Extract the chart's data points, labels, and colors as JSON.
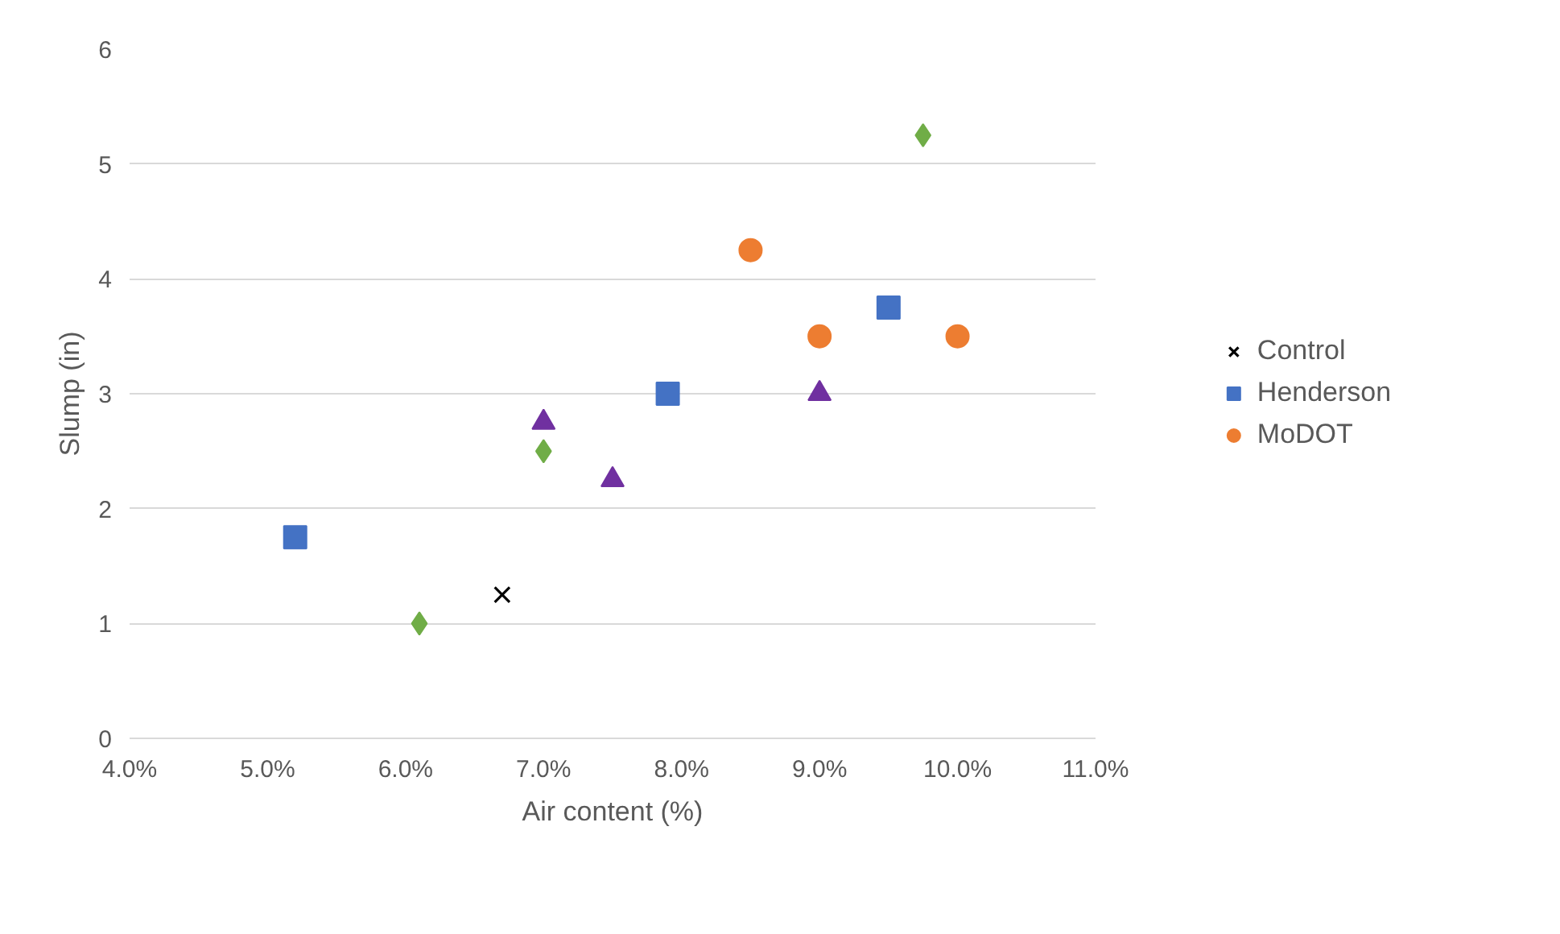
{
  "chart_data": {
    "type": "scatter",
    "xlabel": "Air content (%)",
    "ylabel": "Slump (in)",
    "xlim": [
      4,
      11
    ],
    "ylim": [
      0,
      6
    ],
    "xticks": [
      {
        "value": 4,
        "label": "4.0%"
      },
      {
        "value": 5,
        "label": "5.0%"
      },
      {
        "value": 6,
        "label": "6.0%"
      },
      {
        "value": 7,
        "label": "7.0%"
      },
      {
        "value": 8,
        "label": "8.0%"
      },
      {
        "value": 9,
        "label": "9.0%"
      },
      {
        "value": 10,
        "label": "10.0%"
      },
      {
        "value": 11,
        "label": "11.0%"
      }
    ],
    "yticks": [
      0,
      1,
      2,
      3,
      4,
      5,
      6
    ],
    "grid": "y",
    "legend": "right",
    "series": [
      {
        "name": "Control",
        "color": "#000000",
        "marker": "cross",
        "x": [
          6.7
        ],
        "values": [
          1.25
        ]
      },
      {
        "name": "Henderson",
        "color": "#4472c4",
        "marker": "square",
        "x": [
          5.2,
          7.9,
          9.5
        ],
        "values": [
          1.75,
          3.0,
          3.75
        ]
      },
      {
        "color": "#70ad47",
        "marker": "diamond",
        "x": [
          6.1,
          7.0,
          9.75
        ],
        "values": [
          1.0,
          2.5,
          5.25
        ]
      },
      {
        "color": "#7030a0",
        "marker": "triangle",
        "x": [
          7.0,
          7.5,
          9.0
        ],
        "values": [
          2.75,
          2.25,
          3.0
        ]
      },
      {
        "name": "MoDOT",
        "color": "#ed7d31",
        "marker": "circle",
        "x": [
          8.5,
          9.0,
          10.0
        ],
        "values": [
          4.25,
          3.5,
          3.5
        ]
      }
    ]
  }
}
